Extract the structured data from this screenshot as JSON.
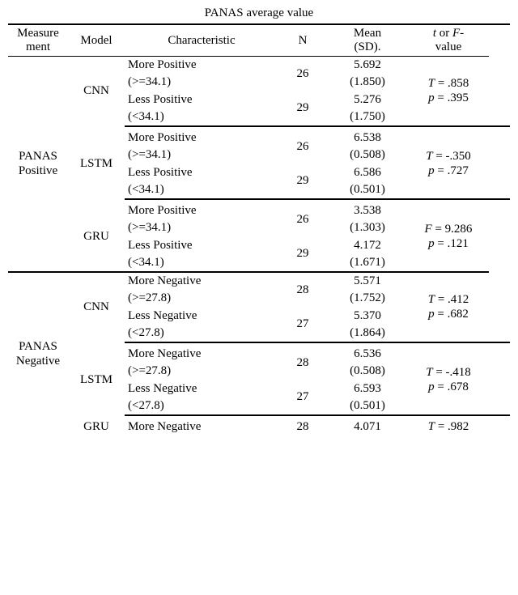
{
  "caption": "PANAS average value",
  "headers": {
    "measure": "Measure\nment",
    "model": "Model",
    "characteristic": "Characteristic",
    "n": "N",
    "mean": "Mean\n(SD).",
    "stat_html": "t or F-\nvalue"
  },
  "stat_prefix_t": "t",
  "stat_or": " or ",
  "stat_prefix_F": "F",
  "stat_suffix": "-\nvalue",
  "blocks": [
    {
      "measure": "PANAS\nPositive",
      "groups": [
        {
          "model": "CNN",
          "rows": [
            {
              "char1": "More Positive",
              "char2": "(>=34.1)",
              "n": "26",
              "m1": "5.692",
              "m2": "(1.850)"
            },
            {
              "char1": "Less Positive",
              "char2": "(<34.1)",
              "n": "29",
              "m1": "5.276",
              "m2": "(1.750)"
            }
          ],
          "stat1_sym": "T",
          "stat1_eq": " = ",
          "stat1_val": ".858",
          "stat2_sym": "p",
          "stat2_eq": " = ",
          "stat2_val": ".395"
        },
        {
          "model": "LSTM",
          "rows": [
            {
              "char1": "More Positive",
              "char2": "(>=34.1)",
              "n": "26",
              "m1": "6.538",
              "m2": "(0.508)"
            },
            {
              "char1": "Less Positive",
              "char2": "(<34.1)",
              "n": "29",
              "m1": "6.586",
              "m2": "(0.501)"
            }
          ],
          "stat1_sym": "T",
          "stat1_eq": " = ",
          "stat1_val": "-.350",
          "stat2_sym": "p",
          "stat2_eq": " = ",
          "stat2_val": ".727"
        },
        {
          "model": "GRU",
          "rows": [
            {
              "char1": "More Positive",
              "char2": "(>=34.1)",
              "n": "26",
              "m1": "3.538",
              "m2": "(1.303)"
            },
            {
              "char1": "Less Positive",
              "char2": "(<34.1)",
              "n": "29",
              "m1": "4.172",
              "m2": "(1.671)"
            }
          ],
          "stat1_sym": "F",
          "stat1_eq": " = ",
          "stat1_val": "9.286",
          "stat2_sym": "p",
          "stat2_eq": " = ",
          "stat2_val": ".121"
        }
      ]
    },
    {
      "measure": "PANAS\nNegative",
      "groups": [
        {
          "model": "CNN",
          "rows": [
            {
              "char1": "More Negative",
              "char2": "(>=27.8)",
              "n": "28",
              "m1": "5.571",
              "m2": "(1.752)"
            },
            {
              "char1": "Less Negative",
              "char2": "(<27.8)",
              "n": "27",
              "m1": "5.370",
              "m2": "(1.864)"
            }
          ],
          "stat1_sym": "T",
          "stat1_eq": " = ",
          "stat1_val": ".412",
          "stat2_sym": "p",
          "stat2_eq": " = ",
          "stat2_val": ".682"
        },
        {
          "model": "LSTM",
          "rows": [
            {
              "char1": "More Negative",
              "char2": "(>=27.8)",
              "n": "28",
              "m1": "6.536",
              "m2": "(0.508)"
            },
            {
              "char1": "Less Negative",
              "char2": "(<27.8)",
              "n": "27",
              "m1": "6.593",
              "m2": "(0.501)"
            }
          ],
          "stat1_sym": "T",
          "stat1_eq": " = ",
          "stat1_val": "-.418",
          "stat2_sym": "p",
          "stat2_eq": " = ",
          "stat2_val": ".678"
        },
        {
          "model": "GRU",
          "partial": true,
          "rows": [
            {
              "char1": "More Negative",
              "char2": "",
              "n": "28",
              "m1": "4.071",
              "m2": ""
            }
          ],
          "stat1_sym": "T",
          "stat1_eq": " = ",
          "stat1_val": ".982",
          "stat2_sym": "",
          "stat2_eq": "",
          "stat2_val": ""
        }
      ]
    }
  ],
  "colors": {
    "fg": "#000000",
    "bg": "#ffffff",
    "rule": "#000000"
  }
}
